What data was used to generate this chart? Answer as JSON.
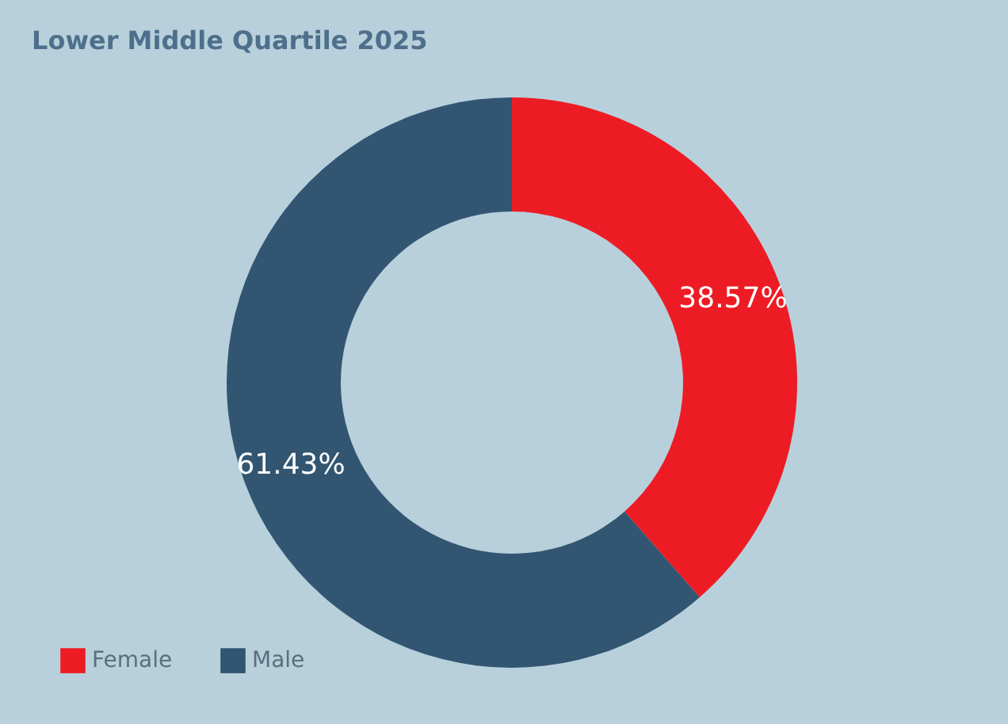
{
  "chart_data": {
    "type": "donut",
    "title": "Lower Middle Quartile 2025",
    "categories": [
      "Female",
      "Male"
    ],
    "values": [
      38.57,
      61.43
    ],
    "colors": [
      "#ed1c24",
      "#325672"
    ],
    "value_labels": [
      "38.57%",
      "61.43%"
    ],
    "legend": "bottom left"
  }
}
